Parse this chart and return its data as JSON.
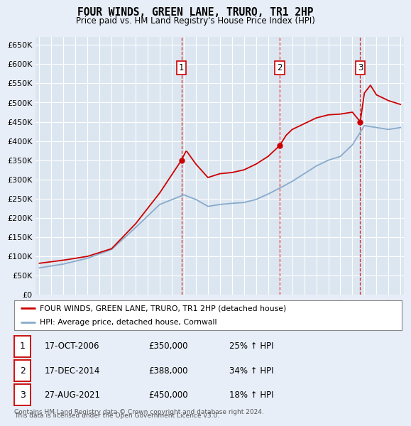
{
  "title": "FOUR WINDS, GREEN LANE, TRURO, TR1 2HP",
  "subtitle": "Price paid vs. HM Land Registry's House Price Index (HPI)",
  "background_color": "#e8eef7",
  "plot_bg_color": "#dce6f0",
  "grid_color": "#ffffff",
  "red_line_color": "#cc0000",
  "blue_line_color": "#88aacc",
  "ylim": [
    0,
    670000
  ],
  "yticks": [
    0,
    50000,
    100000,
    150000,
    200000,
    250000,
    300000,
    350000,
    400000,
    450000,
    500000,
    550000,
    600000,
    650000
  ],
  "ytick_labels": [
    "£0",
    "£50K",
    "£100K",
    "£150K",
    "£200K",
    "£250K",
    "£300K",
    "£350K",
    "£400K",
    "£450K",
    "£500K",
    "£550K",
    "£600K",
    "£650K"
  ],
  "sale_prices": [
    350000,
    388000,
    450000
  ],
  "sale_labels": [
    "1",
    "2",
    "3"
  ],
  "sale_pct": [
    "25% ↑ HPI",
    "34% ↑ HPI",
    "18% ↑ HPI"
  ],
  "sale_date_str": [
    "17-OCT-2006",
    "17-DEC-2014",
    "27-AUG-2021"
  ],
  "sale_year_nums": [
    2006.8,
    2014.96,
    2021.65
  ],
  "legend_entries": [
    "FOUR WINDS, GREEN LANE, TRURO, TR1 2HP (detached house)",
    "HPI: Average price, detached house, Cornwall"
  ],
  "footer": "Contains HM Land Registry data © Crown copyright and database right 2024.\nThis data is licensed under the Open Government Licence v3.0.",
  "xstart_year": 1995,
  "xend_year": 2025,
  "hpi_knots": [
    1995,
    1997,
    1999,
    2001,
    2003,
    2005,
    2007,
    2008,
    2009,
    2010,
    2011,
    2012,
    2013,
    2014,
    2015,
    2016,
    2017,
    2018,
    2019,
    2020,
    2021,
    2021.5,
    2022,
    2023,
    2024,
    2025
  ],
  "hpi_vals": [
    70000,
    80000,
    95000,
    118000,
    175000,
    235000,
    260000,
    248000,
    230000,
    235000,
    238000,
    240000,
    248000,
    262000,
    278000,
    295000,
    315000,
    335000,
    350000,
    360000,
    390000,
    415000,
    440000,
    435000,
    430000,
    435000
  ],
  "red_knots": [
    1995,
    1997,
    1999,
    2001,
    2003,
    2005,
    2006.8,
    2007.2,
    2008,
    2009,
    2010,
    2011,
    2012,
    2013,
    2014,
    2014.96,
    2015.5,
    2016,
    2017,
    2018,
    2019,
    2020,
    2021,
    2021.65,
    2022,
    2022.5,
    2023,
    2024,
    2025
  ],
  "red_vals": [
    82000,
    90000,
    100000,
    120000,
    185000,
    265000,
    350000,
    375000,
    340000,
    305000,
    315000,
    318000,
    325000,
    340000,
    360000,
    388000,
    415000,
    430000,
    445000,
    460000,
    468000,
    470000,
    475000,
    450000,
    525000,
    545000,
    520000,
    505000,
    495000
  ]
}
